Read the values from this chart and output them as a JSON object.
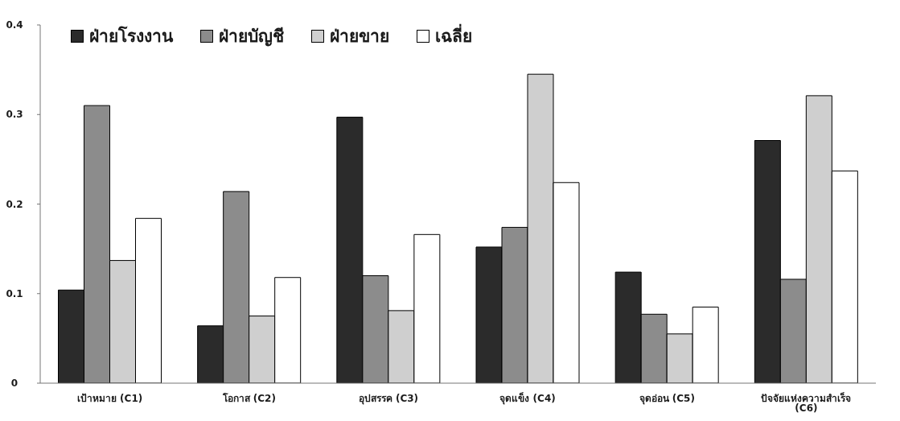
{
  "chart_data": {
    "type": "bar",
    "categories": [
      "เป้าหมาย (C1)",
      "โอกาส (C2)",
      "อุปสรรค (C3)",
      "จุดแข็ง (C4)",
      "จุดอ่อน (C5)",
      "ปัจจัยแห่งความสำเร็จ (C6)"
    ],
    "series": [
      {
        "name": "ฝ่ายโรงงาน",
        "color": "#2b2b2b",
        "values": [
          0.104,
          0.064,
          0.297,
          0.152,
          0.124,
          0.271
        ]
      },
      {
        "name": "ฝ่ายบัญชี",
        "color": "#8c8c8c",
        "values": [
          0.31,
          0.214,
          0.12,
          0.174,
          0.077,
          0.116
        ]
      },
      {
        "name": "ฝ่ายขาย",
        "color": "#cfcfcf",
        "values": [
          0.137,
          0.075,
          0.081,
          0.345,
          0.055,
          0.321
        ]
      },
      {
        "name": "เฉลี่ย",
        "color": "#ffffff",
        "values": [
          0.184,
          0.118,
          0.166,
          0.224,
          0.085,
          0.237
        ]
      }
    ],
    "ylim": [
      0,
      0.4
    ],
    "yticks": [
      0,
      0.1,
      0.2,
      0.3,
      0.4
    ],
    "legend": "top left"
  }
}
